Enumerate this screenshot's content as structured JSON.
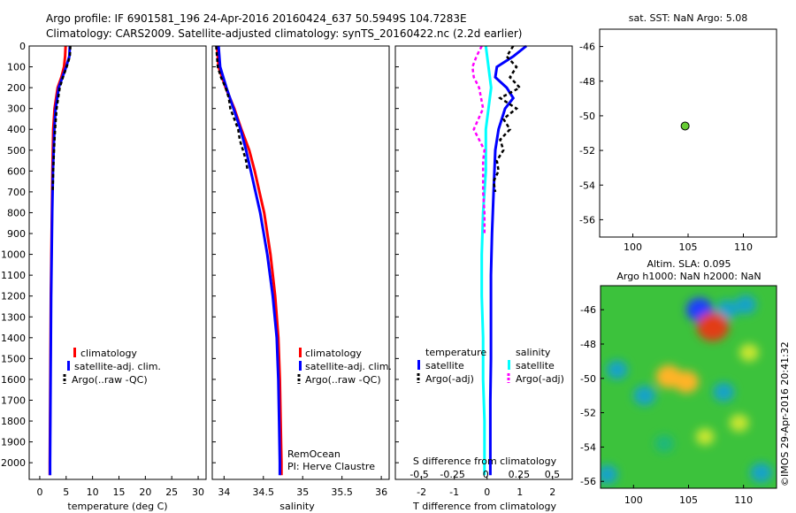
{
  "header": {
    "line1": "Argo profile: IF 6901581_196 24-Apr-2016 20160424_637 50.5949S 104.7283E",
    "line2": "Climatology: CARS2009. Satellite-adjusted climatology: synTS_20160422.nc (2.2d earlier)"
  },
  "colors": {
    "climatology": "#ff0000",
    "satellite": "#0000ff",
    "argo": "#000000",
    "sal_satellite": "#00ffff",
    "sal_argo": "#ff00ff",
    "float_marker": "#66cc33"
  },
  "depth_axis": {
    "ticks": [
      0,
      100,
      200,
      300,
      400,
      500,
      600,
      700,
      800,
      900,
      1000,
      1100,
      1200,
      1300,
      1400,
      1500,
      1600,
      1700,
      1800,
      1900,
      2000
    ],
    "range": [
      0,
      2080
    ]
  },
  "legend_tracks": {
    "items": [
      "climatology",
      "satellite-adj. clim.",
      "Argo(..raw -QC)"
    ]
  },
  "legend_diff": {
    "temp_header": "temperature",
    "sal_header": "salinity",
    "temp_items": [
      "satellite",
      "Argo(-adj)"
    ],
    "sal_items": [
      "satellite",
      "Argo(-adj)"
    ]
  },
  "chart_data": [
    {
      "type": "line",
      "id": "temperature",
      "xlabel": "temperature (deg C)",
      "xlim": [
        -2,
        31.5
      ],
      "xticks": [
        0,
        5,
        10,
        15,
        20,
        25,
        30
      ],
      "ylim": [
        2080,
        0
      ],
      "series": [
        {
          "name": "climatology",
          "depth": [
            0,
            50,
            100,
            150,
            200,
            300,
            400,
            600,
            800,
            1000,
            1200,
            1400,
            1600,
            1800,
            2000,
            2060
          ],
          "values": [
            4.9,
            4.8,
            4.6,
            4.1,
            3.4,
            2.8,
            2.55,
            2.4,
            2.3,
            2.2,
            2.1,
            2.05,
            2.0,
            1.95,
            1.9,
            1.9
          ]
        },
        {
          "name": "satellite-adj. clim.",
          "depth": [
            0,
            50,
            100,
            150,
            200,
            300,
            400,
            600,
            800,
            1000,
            1200,
            1400,
            1600,
            1800,
            2000,
            2060
          ],
          "values": [
            5.7,
            5.6,
            5.0,
            4.3,
            3.6,
            3.0,
            2.75,
            2.5,
            2.35,
            2.25,
            2.15,
            2.1,
            2.05,
            2.0,
            1.95,
            1.95
          ]
        },
        {
          "name": "Argo(..raw -QC)",
          "depth": [
            0,
            50,
            100,
            150,
            200,
            300,
            400,
            500,
            600,
            700
          ],
          "values": [
            5.8,
            5.7,
            5.1,
            4.4,
            3.8,
            3.2,
            2.9,
            2.7,
            2.55,
            2.45
          ]
        }
      ]
    },
    {
      "type": "line",
      "id": "salinity",
      "xlabel": "salinity",
      "xlim": [
        33.85,
        36.1
      ],
      "xticks": [
        34,
        34.5,
        35,
        35.5,
        36
      ],
      "ylim": [
        2080,
        0
      ],
      "series": [
        {
          "name": "climatology",
          "depth": [
            0,
            100,
            200,
            300,
            400,
            500,
            600,
            700,
            800,
            1000,
            1200,
            1400,
            1600,
            1800,
            2000,
            2060
          ],
          "values": [
            33.91,
            33.93,
            34.02,
            34.13,
            34.22,
            34.32,
            34.39,
            34.45,
            34.51,
            34.59,
            34.65,
            34.69,
            34.71,
            34.72,
            34.73,
            34.73
          ]
        },
        {
          "name": "satellite-adj. clim.",
          "depth": [
            0,
            100,
            200,
            300,
            400,
            500,
            600,
            700,
            800,
            1000,
            1200,
            1400,
            1600,
            1800,
            2000,
            2060
          ],
          "values": [
            33.93,
            33.95,
            34.03,
            34.12,
            34.21,
            34.28,
            34.34,
            34.4,
            34.46,
            34.55,
            34.62,
            34.67,
            34.69,
            34.7,
            34.71,
            34.71
          ]
        },
        {
          "name": "Argo(..raw -QC)",
          "depth": [
            0,
            100,
            150,
            200,
            250,
            300,
            350,
            400,
            450,
            500,
            550,
            600
          ],
          "values": [
            33.9,
            33.92,
            33.96,
            34.02,
            34.06,
            34.08,
            34.13,
            34.18,
            34.2,
            34.24,
            34.28,
            34.3
          ]
        }
      ]
    },
    {
      "type": "line",
      "id": "difference",
      "xlabel": "T difference from climatology",
      "xlabel_top": "S difference from climatology",
      "xlim": [
        -2.8,
        2.6
      ],
      "xticks": [
        -2,
        -1,
        0,
        1,
        2
      ],
      "xticks_top": [
        "-0.5",
        "-0.25",
        "0",
        "0.25",
        "0.5"
      ],
      "ylim": [
        2080,
        0
      ],
      "series": [
        {
          "name": "temperature satellite",
          "depth": [
            0,
            50,
            100,
            150,
            200,
            250,
            300,
            400,
            500,
            700,
            900,
            1100,
            1300,
            1500,
            1700,
            1900,
            2060
          ],
          "values": [
            1.2,
            0.8,
            0.3,
            0.25,
            0.6,
            0.8,
            0.55,
            0.35,
            0.25,
            0.2,
            0.15,
            0.12,
            0.12,
            0.12,
            0.1,
            0.1,
            0.1
          ]
        },
        {
          "name": "temperature Argo(-adj)",
          "depth": [
            0,
            50,
            100,
            150,
            200,
            250,
            300,
            350,
            400,
            450,
            500,
            550,
            600,
            650,
            700
          ],
          "values": [
            0.8,
            0.6,
            0.9,
            0.7,
            1.0,
            0.4,
            0.9,
            0.5,
            0.7,
            0.4,
            0.5,
            0.3,
            0.35,
            0.2,
            0.25
          ]
        },
        {
          "name": "salinity satellite",
          "depth": [
            0,
            100,
            200,
            300,
            400,
            500,
            600,
            800,
            1000,
            1200,
            1400,
            1600,
            1800,
            2000,
            2060
          ],
          "values": [
            0.0,
            0.02,
            0.04,
            0.02,
            0.0,
            0.0,
            0.0,
            -0.02,
            -0.03,
            -0.03,
            -0.02,
            -0.02,
            -0.01,
            -0.01,
            -0.01
          ]
        },
        {
          "name": "salinity Argo(-adj)",
          "depth": [
            0,
            50,
            100,
            150,
            200,
            300,
            400,
            500,
            550,
            600,
            700,
            800,
            900
          ],
          "values": [
            -0.03,
            -0.07,
            -0.1,
            -0.09,
            -0.05,
            -0.02,
            -0.09,
            -0.01,
            -0.02,
            -0.02,
            -0.02,
            -0.01,
            -0.01
          ]
        }
      ]
    },
    {
      "type": "scatter",
      "id": "location",
      "title": "sat. SST: NaN Argo: 5.08",
      "xlim": [
        97,
        113
      ],
      "ylim": [
        -57,
        -45
      ],
      "xticks": [
        100,
        105,
        110
      ],
      "yticks": [
        -46,
        -48,
        -50,
        -52,
        -54,
        -56
      ],
      "points": [
        {
          "lon": 104.73,
          "lat": -50.59
        }
      ]
    },
    {
      "type": "heatmap",
      "id": "sla_map",
      "title_line1": "Altim. SLA: 0.095",
      "title_line2": "Argo h1000: NaN h2000: NaN",
      "xlim": [
        97,
        113
      ],
      "ylim": [
        -56.4,
        -44.6
      ],
      "xticks": [
        100,
        105,
        110
      ],
      "yticks": [
        -46,
        -48,
        -50,
        -52,
        -54,
        -56
      ],
      "blobs": [
        {
          "lon": 106.0,
          "lat": -46.0,
          "value": -0.6
        },
        {
          "lon": 108.5,
          "lat": -46.0,
          "value": -0.35
        },
        {
          "lon": 110.2,
          "lat": -45.7,
          "value": -0.3
        },
        {
          "lon": 107.2,
          "lat": -47.0,
          "value": 0.9
        },
        {
          "lon": 103.2,
          "lat": -49.9,
          "value": 0.55
        },
        {
          "lon": 104.8,
          "lat": -50.2,
          "value": 0.5
        },
        {
          "lon": 98.5,
          "lat": -49.5,
          "value": -0.3
        },
        {
          "lon": 101.0,
          "lat": -51.0,
          "value": -0.35
        },
        {
          "lon": 108.2,
          "lat": -50.8,
          "value": -0.3
        },
        {
          "lon": 110.5,
          "lat": -48.5,
          "value": 0.2
        },
        {
          "lon": 111.6,
          "lat": -55.5,
          "value": -0.35
        },
        {
          "lon": 97.6,
          "lat": -55.6,
          "value": -0.3
        },
        {
          "lon": 102.8,
          "lat": -53.8,
          "value": -0.2
        },
        {
          "lon": 106.5,
          "lat": -53.4,
          "value": 0.15
        },
        {
          "lon": 109.6,
          "lat": -52.6,
          "value": 0.2
        }
      ]
    }
  ],
  "credit": "PI: Herve Claustre",
  "credit_line1": "RemOcean",
  "watermark": "©IMOS 29-Apr-2016 20:41:32"
}
